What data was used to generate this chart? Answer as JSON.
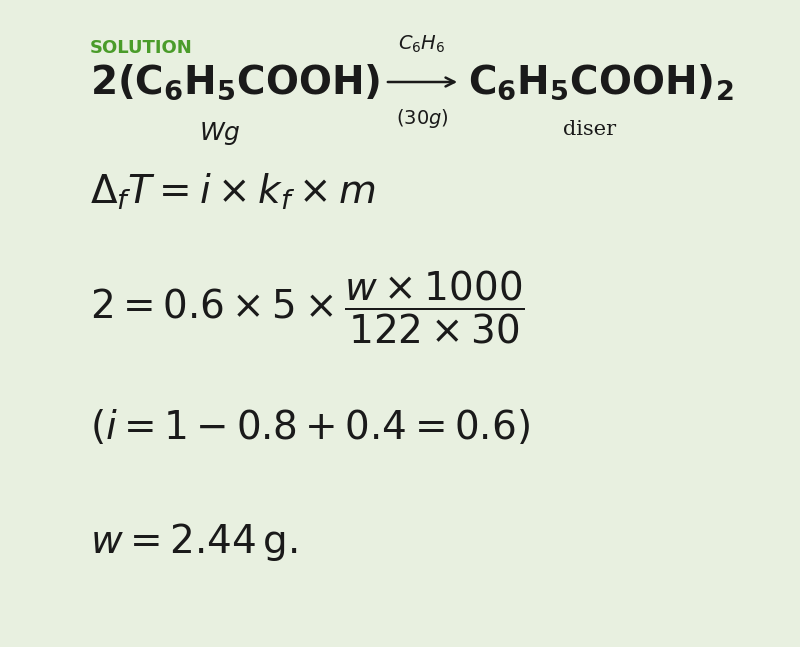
{
  "background_color": "#e8f0e0",
  "solution_label": "SOLUTION",
  "solution_color": "#4a9c2a",
  "text_color": "#1a1a1a",
  "fig_width": 8.0,
  "fig_height": 6.47
}
